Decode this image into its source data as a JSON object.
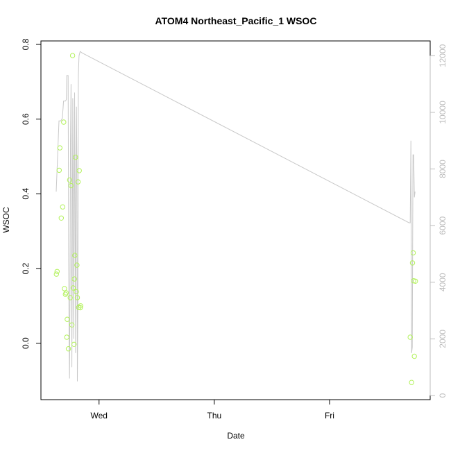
{
  "chart_data": {
    "type": "scatter",
    "title": "ATOM4 Northeast_Pacific_1 WSOC",
    "xlabel": "Date",
    "ylabel": "WSOC",
    "x_tick_labels": [
      "Wed",
      "Thu",
      "Fri"
    ],
    "x_tick_days": [
      1,
      2,
      3
    ],
    "xlim_days": [
      0.568,
      3.795
    ],
    "ylim": [
      -0.14,
      0.8
    ],
    "y_ticks": [
      0.0,
      0.2,
      0.4,
      0.6,
      0.8
    ],
    "y2lim": [
      0,
      12400
    ],
    "y2_ticks": [
      0,
      2000,
      4000,
      6000,
      8000,
      10000,
      12000
    ],
    "colors": {
      "points": "#b2f25a",
      "line": "#c8c8c8",
      "right_axis": "#bdbdbd"
    },
    "series": [
      {
        "kind": "points",
        "axis": "left",
        "x_days": [
          0.63,
          0.636,
          0.654,
          0.66,
          0.672,
          0.684,
          0.693,
          0.7,
          0.708,
          0.714,
          0.72,
          0.724,
          0.734,
          0.745,
          0.75,
          0.757,
          0.764,
          0.77,
          0.776,
          0.783,
          0.786,
          0.79,
          0.796,
          0.802,
          0.808,
          0.812,
          0.818,
          0.823,
          0.828,
          0.837,
          0.84,
          3.7,
          3.712,
          3.72,
          3.726,
          3.73,
          3.736,
          3.745
        ],
        "values": [
          0.185,
          0.192,
          0.463,
          0.523,
          0.335,
          0.365,
          0.592,
          0.146,
          0.131,
          0.135,
          0.016,
          0.064,
          -0.015,
          0.437,
          0.122,
          0.422,
          0.049,
          0.77,
          0.148,
          -0.003,
          0.172,
          0.235,
          0.498,
          0.138,
          0.209,
          0.122,
          0.432,
          0.096,
          0.462,
          0.095,
          0.1,
          0.016,
          -0.105,
          0.215,
          0.242,
          0.167,
          -0.035,
          0.166
        ]
      },
      {
        "kind": "line",
        "axis": "right",
        "x_days": [
          0.628,
          0.636,
          0.652,
          0.662,
          0.668,
          0.676,
          0.682,
          0.692,
          0.7,
          0.708,
          0.716,
          0.72,
          0.724,
          0.728,
          0.732,
          0.736,
          0.74,
          0.744,
          0.748,
          0.752,
          0.757,
          0.76,
          0.764,
          0.768,
          0.772,
          0.776,
          0.78,
          0.784,
          0.788,
          0.792,
          0.796,
          0.8,
          0.804,
          0.808,
          0.812,
          0.816,
          0.82,
          0.826,
          0.836,
          0.852,
          3.69,
          3.7,
          3.706,
          3.712,
          3.718,
          3.724,
          3.73,
          3.736,
          3.742
        ],
        "values": [
          7200,
          8000,
          9700,
          9700,
          9700,
          9750,
          9800,
          10400,
          10400,
          10400,
          10450,
          11300,
          11300,
          11300,
          11300,
          5000,
          2000,
          600,
          4000,
          9000,
          11000,
          6000,
          1000,
          5000,
          10500,
          8000,
          2000,
          5500,
          10700,
          7000,
          1500,
          6000,
          10200,
          8000,
          500,
          3000,
          11300,
          12000,
          12150,
          12100,
          6100,
          6100,
          9000,
          1500,
          1700,
          8500,
          8500,
          7000,
          7200
        ]
      }
    ]
  }
}
